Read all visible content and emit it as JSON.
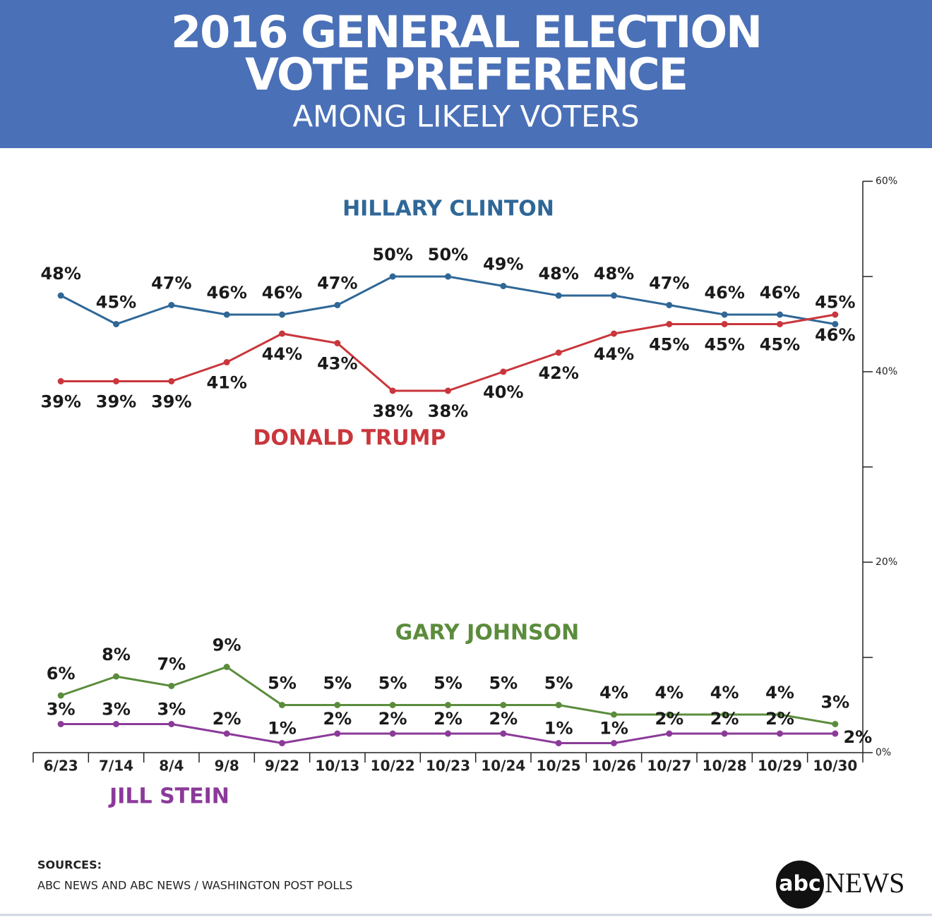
{
  "chart_data": {
    "type": "line",
    "title": [
      "2016 GENERAL ELECTION",
      "VOTE PREFERENCE"
    ],
    "subtitle": "AMONG LIKELY VOTERS",
    "categories": [
      "6/23",
      "7/14",
      "8/4",
      "9/8",
      "9/22",
      "10/13",
      "10/22",
      "10/23",
      "10/24",
      "10/25",
      "10/26",
      "10/27",
      "10/28",
      "10/29",
      "10/30"
    ],
    "series": [
      {
        "name": "HILLARY CLINTON",
        "color": "#2f6797",
        "values": [
          48,
          45,
          47,
          46,
          46,
          47,
          50,
          50,
          49,
          48,
          48,
          47,
          46,
          46,
          45
        ],
        "value_labels": [
          "48%",
          "45%",
          "47%",
          "46%",
          "46%",
          "47%",
          "50%",
          "50%",
          "49%",
          "48%",
          "48%",
          "47%",
          "46%",
          "46%",
          "45%"
        ]
      },
      {
        "name": "DONALD TRUMP",
        "color": "#c9363b",
        "values": [
          39,
          39,
          39,
          41,
          44,
          43,
          38,
          38,
          40,
          42,
          44,
          45,
          45,
          45,
          46
        ],
        "value_labels": [
          "39%",
          "39%",
          "39%",
          "41%",
          "44%",
          "43%",
          "38%",
          "38%",
          "40%",
          "42%",
          "44%",
          "45%",
          "45%",
          "45%",
          "46%"
        ]
      },
      {
        "name": "GARY JOHNSON",
        "color": "#5b8c3c",
        "values": [
          6,
          8,
          7,
          9,
          5,
          5,
          5,
          5,
          5,
          5,
          4,
          4,
          4,
          4,
          3
        ],
        "value_labels": [
          "6%",
          "8%",
          "7%",
          "9%",
          "5%",
          "5%",
          "5%",
          "5%",
          "5%",
          "5%",
          "4%",
          "4%",
          "4%",
          "4%",
          "3%"
        ]
      },
      {
        "name": "JILL STEIN",
        "color": "#8b3a99",
        "values": [
          3,
          3,
          3,
          2,
          1,
          2,
          2,
          2,
          2,
          1,
          1,
          2,
          2,
          2,
          2
        ],
        "value_labels": [
          "3%",
          "3%",
          "3%",
          "2%",
          "1%",
          "2%",
          "2%",
          "2%",
          "2%",
          "1%",
          "1%",
          "2%",
          "2%",
          "2%",
          "2%"
        ]
      }
    ],
    "ylim": [
      0,
      60
    ],
    "yticks": [
      {
        "value": 0,
        "label": "0%"
      },
      {
        "value": 20,
        "label": "20%"
      },
      {
        "value": 40,
        "label": "40%"
      },
      {
        "value": 60,
        "label": "60%"
      }
    ],
    "yminorticks": [
      10,
      30,
      50
    ],
    "sources_heading": "SOURCES:",
    "sources": "ABC NEWS AND ABC NEWS / WASHINGTON POST POLLS",
    "logo": {
      "mark": "abc",
      "text": "NEWS"
    }
  }
}
